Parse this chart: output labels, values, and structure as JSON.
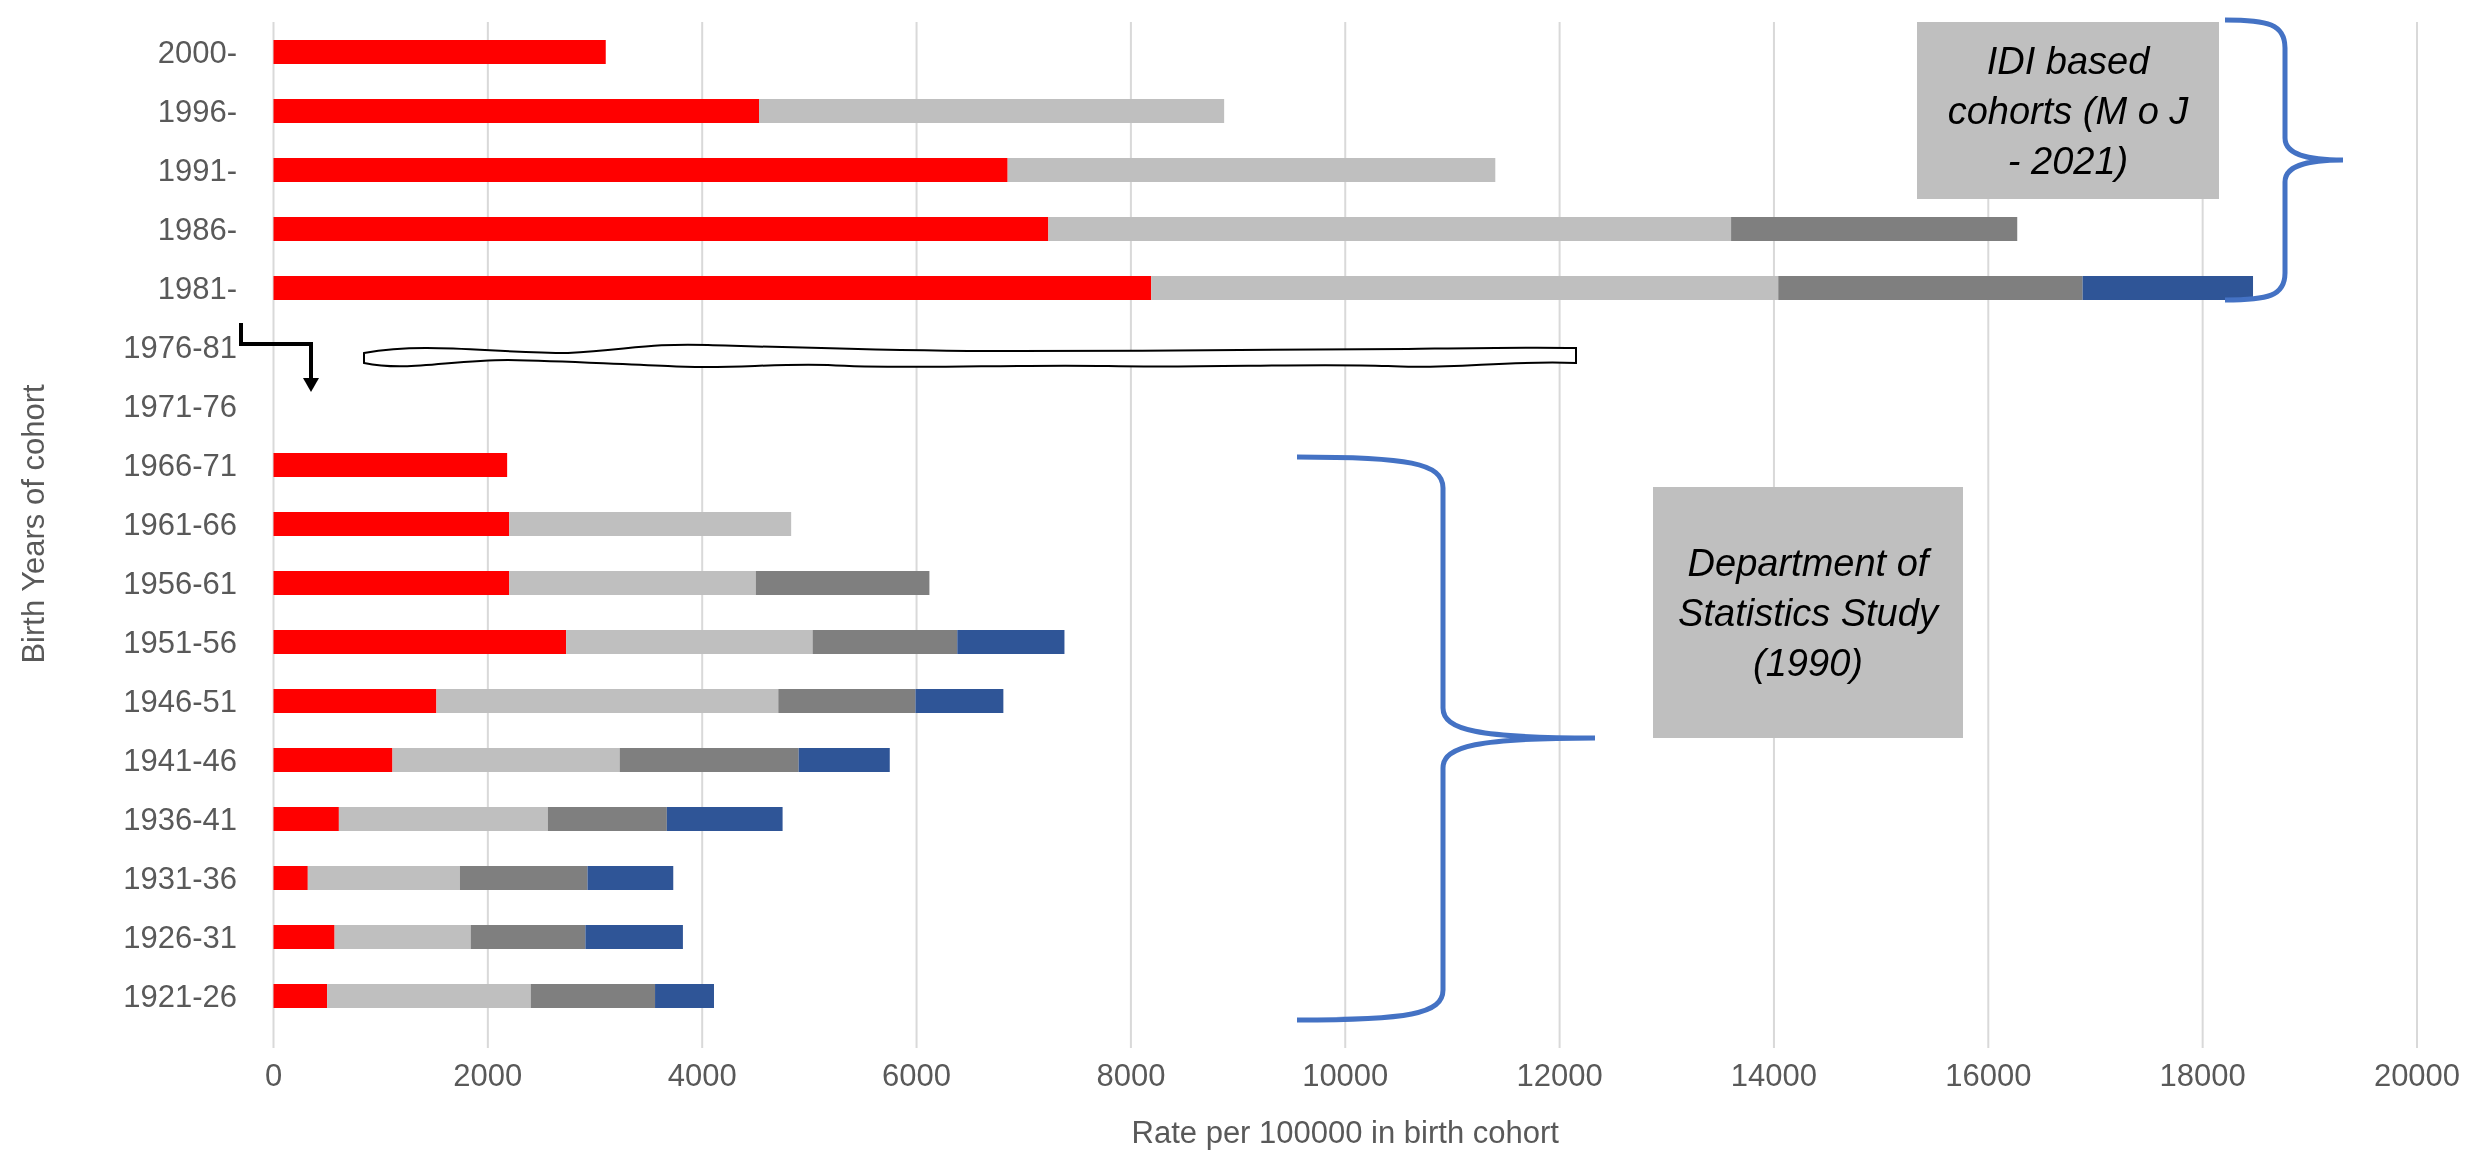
{
  "chart_data": {
    "type": "bar",
    "orientation": "horizontal",
    "stacked": true,
    "xlabel": "Rate per 100000 in birth cohort",
    "ylabel": "Birth Years of cohort",
    "categories": [
      "2000-",
      "1996-",
      "1991-",
      "1986-",
      "1981-",
      "1976-81",
      "1971-76",
      "1966-71",
      "1961-66",
      "1956-61",
      "1951-56",
      "1946-51",
      "1941-46",
      "1936-41",
      "1931-36",
      "1926-31",
      "1921-26"
    ],
    "series": [
      {
        "color": "#ff0000",
        "values": [
          3100,
          4530,
          6850,
          7230,
          8190,
          null,
          null,
          2180,
          2200,
          2200,
          2730,
          1520,
          1110,
          610,
          320,
          570,
          500
        ]
      },
      {
        "color": "#bfbfbf",
        "values": [
          null,
          4340,
          4550,
          6370,
          5850,
          null,
          null,
          null,
          2630,
          2300,
          2300,
          3190,
          2120,
          1950,
          1420,
          1270,
          1900
        ]
      },
      {
        "color": "#7f7f7f",
        "values": [
          null,
          null,
          null,
          2670,
          2840,
          null,
          null,
          null,
          null,
          1620,
          1350,
          1280,
          1670,
          1110,
          1190,
          1070,
          1160
        ]
      },
      {
        "color": "#2f5597",
        "values": [
          null,
          null,
          null,
          null,
          1590,
          null,
          null,
          null,
          null,
          null,
          1000,
          820,
          850,
          1080,
          800,
          910,
          550
        ]
      }
    ],
    "xlim": [
      0,
      20000
    ],
    "xticks": [
      0,
      2000,
      4000,
      6000,
      8000,
      10000,
      12000,
      14000,
      16000,
      18000,
      20000
    ],
    "grid": "x",
    "annotations": [
      "IDI based cohorts (M o J - 2021)",
      "Department of Statistics Study (1990)"
    ]
  }
}
